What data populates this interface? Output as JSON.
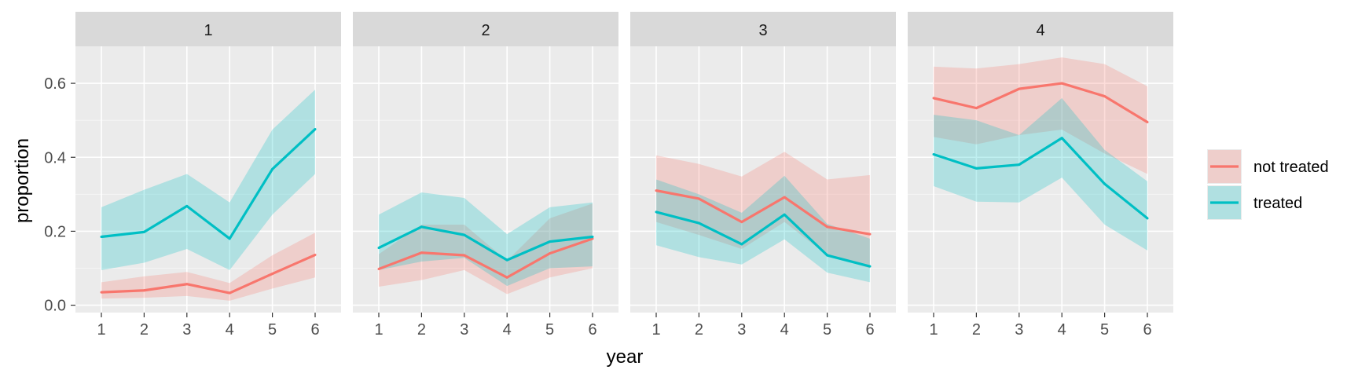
{
  "chart_data": {
    "type": "line",
    "xlabel": "year",
    "ylabel": "proportion",
    "x": [
      1,
      2,
      3,
      4,
      5,
      6
    ],
    "ylim": [
      -0.02,
      0.7
    ],
    "yticks": [
      0.0,
      0.2,
      0.4,
      0.6
    ],
    "ytick_labels": [
      "0.0",
      "0.2",
      "0.4",
      "0.6"
    ],
    "grid": true,
    "legend_position": "right",
    "legend": [
      {
        "name": "not treated",
        "color": "#F8766D"
      },
      {
        "name": "treated",
        "color": "#00BFC4"
      }
    ],
    "panels": [
      {
        "label": "1",
        "series": [
          {
            "name": "not treated",
            "values": [
              0.035,
              0.04,
              0.057,
              0.033,
              0.085,
              0.136
            ],
            "lower": [
              0.018,
              0.02,
              0.025,
              0.012,
              0.045,
              0.075
            ],
            "upper": [
              0.062,
              0.078,
              0.09,
              0.06,
              0.135,
              0.196
            ]
          },
          {
            "name": "treated",
            "values": [
              0.185,
              0.198,
              0.268,
              0.18,
              0.368,
              0.476
            ],
            "lower": [
              0.095,
              0.115,
              0.152,
              0.095,
              0.245,
              0.355
            ],
            "upper": [
              0.265,
              0.312,
              0.355,
              0.278,
              0.475,
              0.583
            ]
          }
        ]
      },
      {
        "label": "2",
        "series": [
          {
            "name": "not treated",
            "values": [
              0.098,
              0.142,
              0.135,
              0.075,
              0.14,
              0.18
            ],
            "lower": [
              0.05,
              0.068,
              0.095,
              0.03,
              0.075,
              0.1
            ],
            "upper": [
              0.138,
              0.218,
              0.218,
              0.12,
              0.235,
              0.275
            ]
          },
          {
            "name": "treated",
            "values": [
              0.155,
              0.212,
              0.19,
              0.122,
              0.172,
              0.185
            ],
            "lower": [
              0.095,
              0.118,
              0.128,
              0.052,
              0.1,
              0.105
            ],
            "upper": [
              0.245,
              0.305,
              0.29,
              0.192,
              0.265,
              0.278
            ]
          }
        ]
      },
      {
        "label": "3",
        "series": [
          {
            "name": "not treated",
            "values": [
              0.31,
              0.288,
              0.225,
              0.292,
              0.212,
              0.192
            ],
            "lower": [
              0.225,
              0.19,
              0.152,
              0.225,
              0.135,
              0.1
            ],
            "upper": [
              0.405,
              0.382,
              0.348,
              0.415,
              0.34,
              0.352
            ]
          },
          {
            "name": "treated",
            "values": [
              0.252,
              0.222,
              0.165,
              0.245,
              0.135,
              0.105
            ],
            "lower": [
              0.162,
              0.13,
              0.11,
              0.178,
              0.088,
              0.062
            ],
            "upper": [
              0.34,
              0.3,
              0.25,
              0.35,
              0.22,
              0.18
            ]
          }
        ]
      },
      {
        "label": "4",
        "series": [
          {
            "name": "not treated",
            "values": [
              0.56,
              0.533,
              0.585,
              0.6,
              0.565,
              0.495
            ],
            "lower": [
              0.455,
              0.435,
              0.46,
              0.475,
              0.41,
              0.355
            ],
            "upper": [
              0.645,
              0.64,
              0.652,
              0.67,
              0.652,
              0.592
            ]
          },
          {
            "name": "treated",
            "values": [
              0.408,
              0.37,
              0.38,
              0.452,
              0.328,
              0.235
            ],
            "lower": [
              0.322,
              0.28,
              0.278,
              0.345,
              0.218,
              0.148
            ],
            "upper": [
              0.515,
              0.5,
              0.46,
              0.56,
              0.42,
              0.335
            ]
          }
        ]
      }
    ]
  }
}
